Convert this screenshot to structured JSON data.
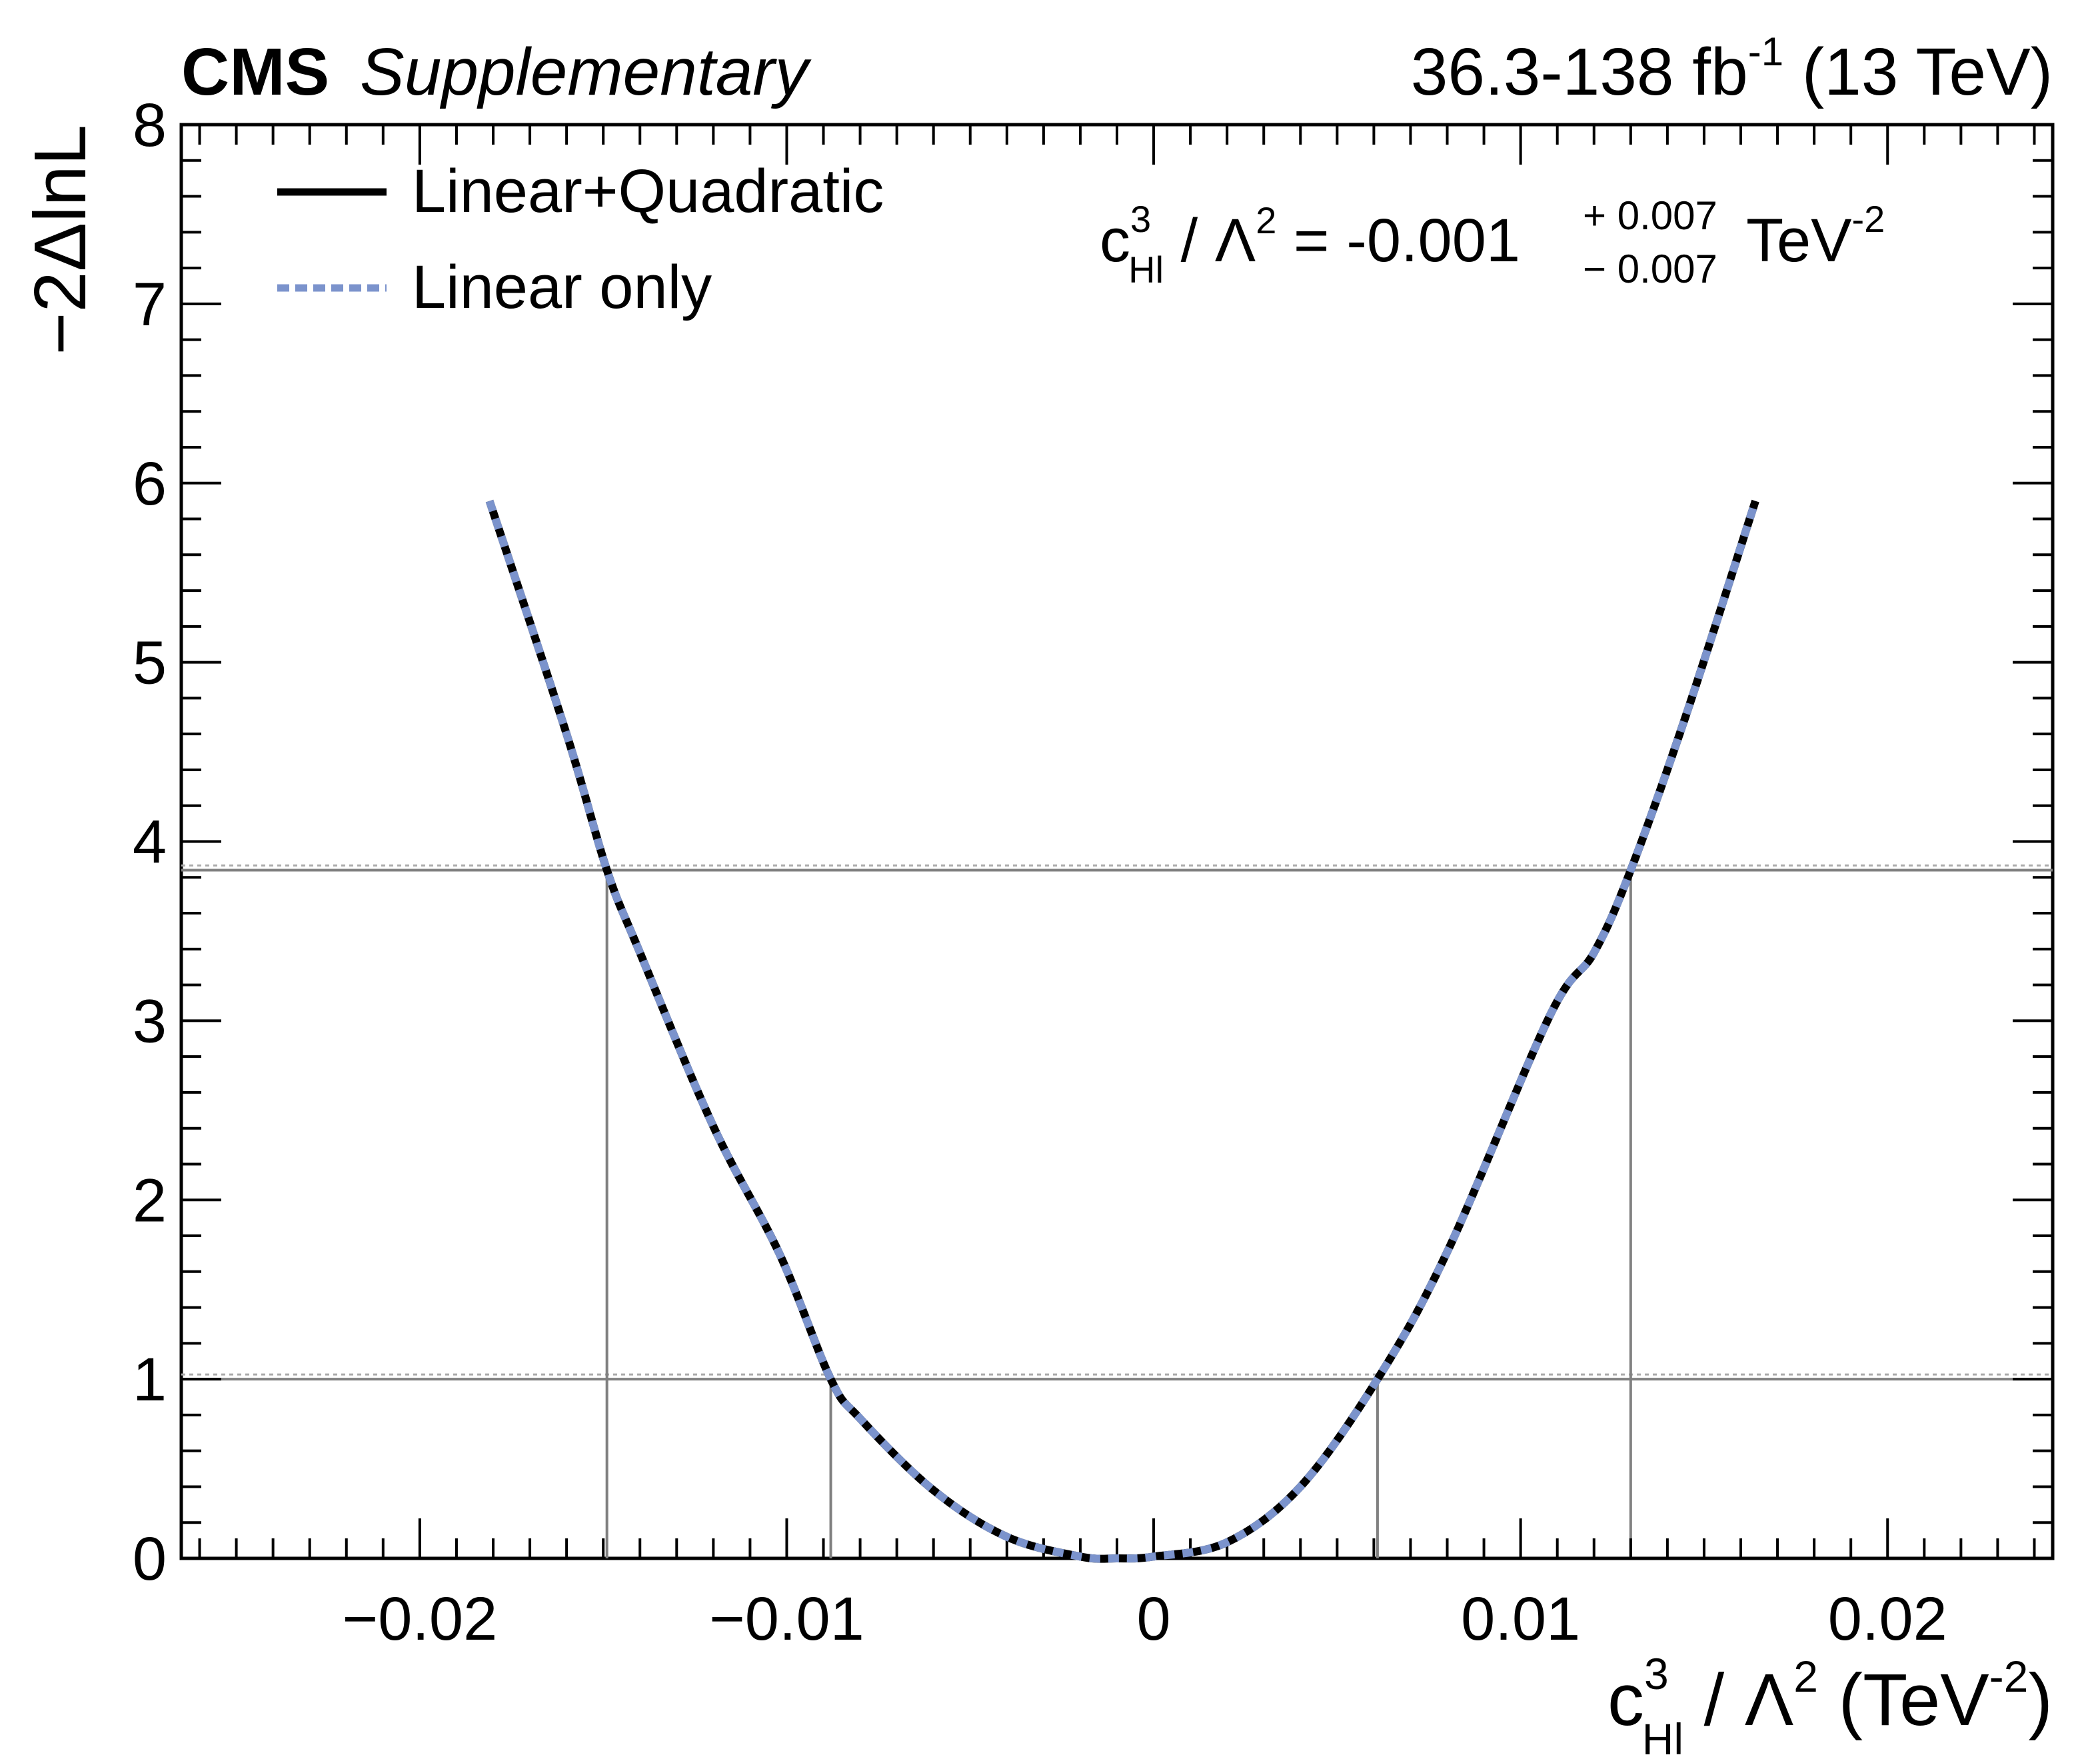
{
  "header": {
    "experiment": "CMS",
    "label": "Supplementary",
    "lumi": "36.3-138 fb",
    "lumi_exp": "-1",
    "energy": "(13 TeV)"
  },
  "result": {
    "coef_base": "c",
    "coef_sup": "3",
    "coef_sub": "Hl",
    "lambda_text": "/ Λ",
    "lambda_exp": "2",
    "equals_value": "= -0.001",
    "err_up": "+ 0.007",
    "err_down": "− 0.007",
    "unit": "TeV",
    "unit_exp": "-2"
  },
  "chart_data": {
    "type": "line",
    "xlabel": {
      "base": "c",
      "sup": "3",
      "sub": "Hl",
      "middle": "/ Λ",
      "middle_exp": "2",
      "unit_open": "(TeV",
      "unit_exp": "-2",
      "unit_close": ")"
    },
    "ylabel": "−2ΔlnL",
    "xlim": [
      -0.0265,
      0.0245
    ],
    "ylim": [
      0,
      8
    ],
    "x_ticks": [
      {
        "value": -0.02,
        "label": "−0.02"
      },
      {
        "value": -0.01,
        "label": "−0.01"
      },
      {
        "value": 0,
        "label": "0"
      },
      {
        "value": 0.01,
        "label": "0.01"
      },
      {
        "value": 0.02,
        "label": "0.02"
      }
    ],
    "y_ticks": [
      {
        "value": 0,
        "label": "0"
      },
      {
        "value": 1,
        "label": "1"
      },
      {
        "value": 2,
        "label": "2"
      },
      {
        "value": 3,
        "label": "3"
      },
      {
        "value": 4,
        "label": "4"
      },
      {
        "value": 5,
        "label": "5"
      },
      {
        "value": 6,
        "label": "6"
      },
      {
        "value": 7,
        "label": "7"
      },
      {
        "value": 8,
        "label": "8"
      }
    ],
    "legend_position": "top-left",
    "series": [
      {
        "name": "Linear+Quadratic",
        "style": "solid",
        "color": "#000000",
        "x": [
          -0.0181,
          -0.016,
          -0.0149,
          -0.014,
          -0.012,
          -0.0102,
          -0.0088,
          -0.008,
          -0.006,
          -0.004,
          -0.002,
          -0.001,
          0.0,
          0.002,
          0.004,
          0.0061,
          0.008,
          0.0108,
          0.012,
          0.013,
          0.0145,
          0.0164
        ],
        "y": [
          5.9,
          4.6,
          3.84,
          3.38,
          2.41,
          1.7,
          1.0,
          0.78,
          0.38,
          0.12,
          0.01,
          0.0,
          0.01,
          0.09,
          0.4,
          1.0,
          1.71,
          3.03,
          3.38,
          3.84,
          4.7,
          5.9
        ]
      },
      {
        "name": "Linear only",
        "style": "dotted",
        "color": "#7b93cc",
        "x": [
          -0.0181,
          -0.016,
          -0.0149,
          -0.014,
          -0.012,
          -0.0102,
          -0.0088,
          -0.008,
          -0.006,
          -0.004,
          -0.002,
          -0.001,
          0.0,
          0.002,
          0.004,
          0.0061,
          0.008,
          0.0108,
          0.012,
          0.013,
          0.0145,
          0.0164
        ],
        "y": [
          5.9,
          4.6,
          3.84,
          3.38,
          2.41,
          1.7,
          1.0,
          0.78,
          0.38,
          0.12,
          0.01,
          0.0,
          0.01,
          0.09,
          0.4,
          1.0,
          1.71,
          3.03,
          3.38,
          3.84,
          4.7,
          5.9
        ]
      }
    ],
    "thresholds": [
      1.0,
      3.84
    ],
    "interval_markers": [
      -0.0149,
      -0.0088,
      0.0061,
      0.013
    ]
  }
}
